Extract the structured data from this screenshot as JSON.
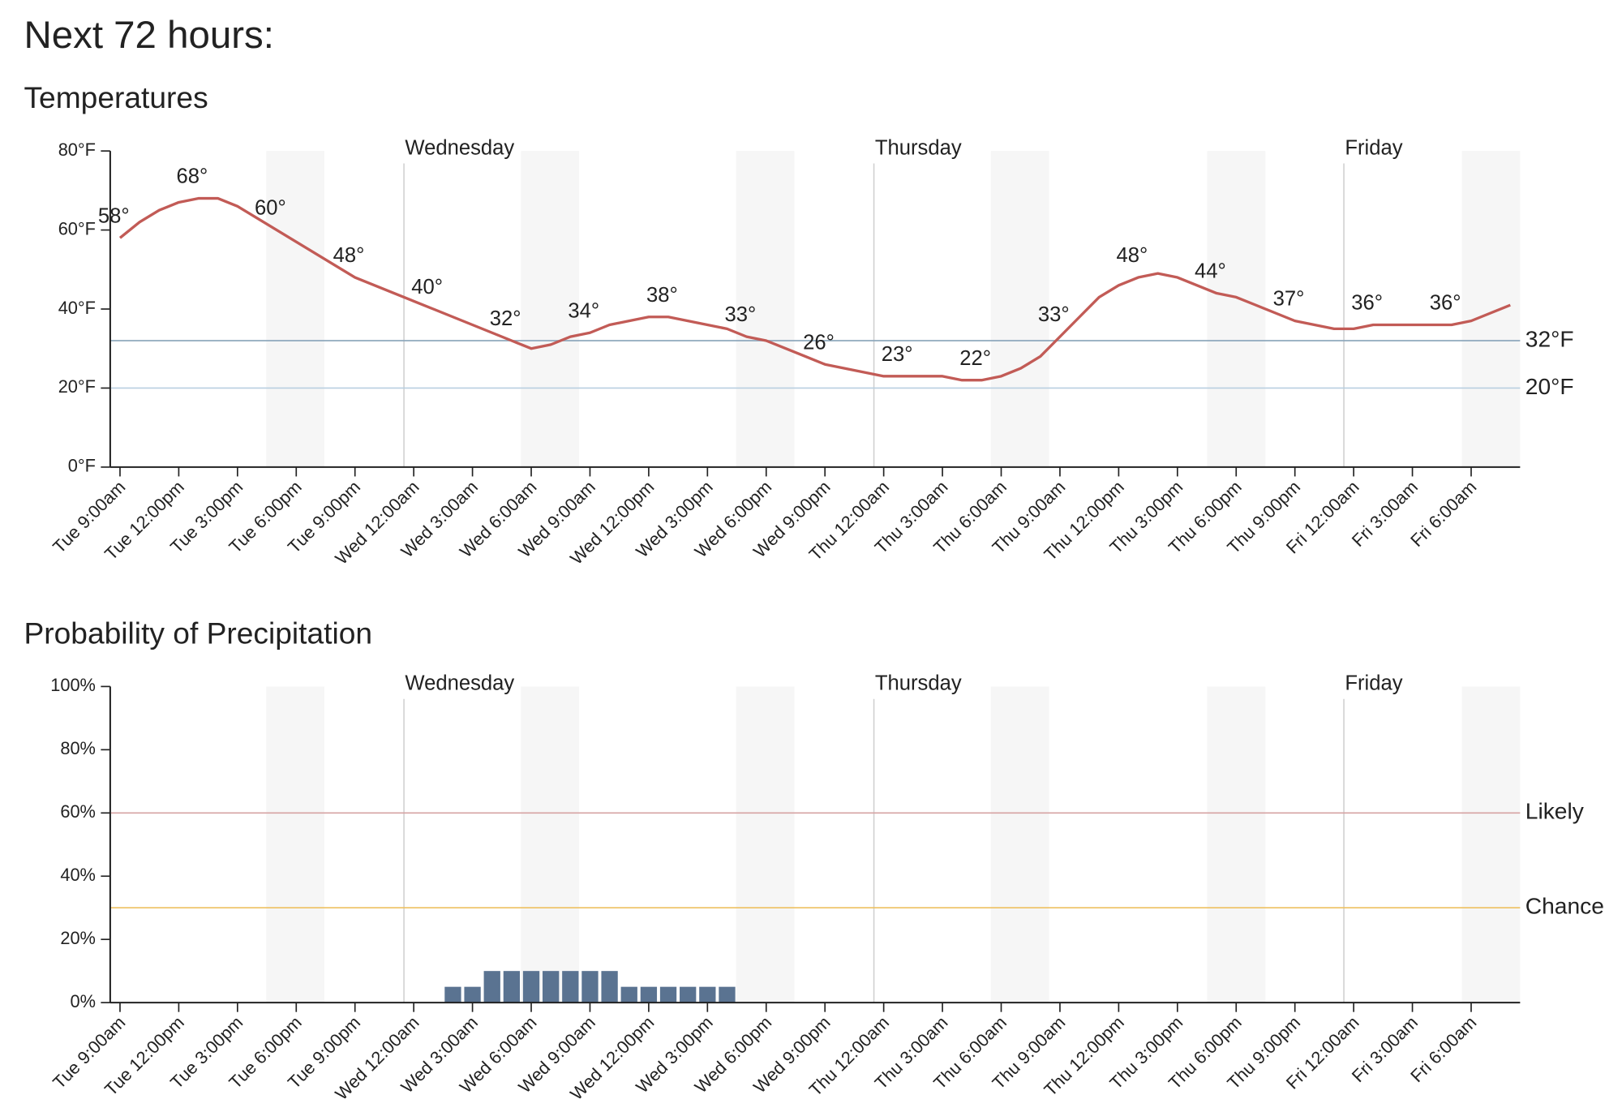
{
  "title": "Next 72 hours:",
  "chart_data": [
    {
      "type": "line",
      "title": "Temperatures",
      "color": "#c25b56",
      "categories": [
        "Tue 9:00am",
        null,
        null,
        "Tue 12:00pm",
        null,
        null,
        "Tue 3:00pm",
        null,
        null,
        "Tue 6:00pm",
        null,
        null,
        "Tue 9:00pm",
        null,
        null,
        "Wed 12:00am",
        null,
        null,
        "Wed 3:00am",
        null,
        null,
        "Wed 6:00am",
        null,
        null,
        "Wed 9:00am",
        null,
        null,
        "Wed 12:00pm",
        null,
        null,
        "Wed 3:00pm",
        null,
        null,
        "Wed 6:00pm",
        null,
        null,
        "Wed 9:00pm",
        null,
        null,
        "Thu 12:00am",
        null,
        null,
        "Thu 3:00am",
        null,
        null,
        "Thu 6:00am",
        null,
        null,
        "Thu 9:00am",
        null,
        null,
        "Thu 12:00pm",
        null,
        null,
        "Thu 3:00pm",
        null,
        null,
        "Thu 6:00pm",
        null,
        null,
        "Thu 9:00pm",
        null,
        null,
        "Fri 12:00am",
        null,
        null,
        "Fri 3:00am",
        null,
        null,
        "Fri 6:00am",
        null,
        null
      ],
      "values": [
        58,
        62,
        65,
        67,
        68,
        68,
        66,
        63,
        60,
        57,
        54,
        51,
        48,
        46,
        44,
        42,
        40,
        38,
        36,
        34,
        32,
        30,
        31,
        33,
        34,
        36,
        37,
        38,
        38,
        37,
        36,
        35,
        33,
        32,
        30,
        28,
        26,
        25,
        24,
        23,
        23,
        23,
        23,
        22,
        22,
        23,
        25,
        28,
        33,
        38,
        43,
        46,
        48,
        49,
        48,
        46,
        44,
        43,
        41,
        39,
        37,
        36,
        35,
        35,
        36,
        36,
        36,
        36,
        36,
        37,
        39,
        41
      ],
      "value_labels": [
        "58°",
        null,
        null,
        null,
        "68°",
        null,
        null,
        null,
        "60°",
        null,
        null,
        null,
        "48°",
        null,
        null,
        null,
        "40°",
        null,
        null,
        null,
        "32°",
        null,
        null,
        null,
        "34°",
        null,
        null,
        null,
        "38°",
        null,
        null,
        null,
        "33°",
        null,
        null,
        null,
        "26°",
        null,
        null,
        null,
        "23°",
        null,
        null,
        null,
        "22°",
        null,
        null,
        null,
        "33°",
        null,
        null,
        null,
        "48°",
        null,
        null,
        null,
        "44°",
        null,
        null,
        null,
        "37°",
        null,
        null,
        null,
        "36°",
        null,
        null,
        null,
        "36°",
        null,
        null,
        null
      ],
      "ylim": [
        0,
        80
      ],
      "yticks": [
        {
          "value": 0,
          "label": "0°F"
        },
        {
          "value": 20,
          "label": "20°F"
        },
        {
          "value": 40,
          "label": "40°F"
        },
        {
          "value": 60,
          "label": "60°F"
        },
        {
          "value": 80,
          "label": "80°F"
        }
      ],
      "reference_lines": [
        {
          "value": 32,
          "label": "32°F",
          "color": "#8fa9bd"
        },
        {
          "value": 20,
          "label": "20°F",
          "color": "#b9cfe0"
        }
      ],
      "day_markers": [
        {
          "category": "Wed 12:00am",
          "label": "Wednesday"
        },
        {
          "category": "Thu 12:00am",
          "label": "Thursday"
        },
        {
          "category": "Fri 12:00am",
          "label": "Friday"
        }
      ]
    },
    {
      "type": "bar",
      "title": "Probability of Precipitation",
      "color": "#5a7391",
      "categories": [
        "Tue 9:00am",
        null,
        null,
        "Tue 12:00pm",
        null,
        null,
        "Tue 3:00pm",
        null,
        null,
        "Tue 6:00pm",
        null,
        null,
        "Tue 9:00pm",
        null,
        null,
        "Wed 12:00am",
        null,
        null,
        "Wed 3:00am",
        null,
        null,
        "Wed 6:00am",
        null,
        null,
        "Wed 9:00am",
        null,
        null,
        "Wed 12:00pm",
        null,
        null,
        "Wed 3:00pm",
        null,
        null,
        "Wed 6:00pm",
        null,
        null,
        "Wed 9:00pm",
        null,
        null,
        "Thu 12:00am",
        null,
        null,
        "Thu 3:00am",
        null,
        null,
        "Thu 6:00am",
        null,
        null,
        "Thu 9:00am",
        null,
        null,
        "Thu 12:00pm",
        null,
        null,
        "Thu 3:00pm",
        null,
        null,
        "Thu 6:00pm",
        null,
        null,
        "Thu 9:00pm",
        null,
        null,
        "Fri 12:00am",
        null,
        null,
        "Fri 3:00am",
        null,
        null,
        "Fri 6:00am",
        null,
        null
      ],
      "values": [
        0,
        0,
        0,
        0,
        0,
        0,
        0,
        0,
        0,
        0,
        0,
        0,
        0,
        0,
        0,
        0,
        0,
        5,
        5,
        10,
        10,
        10,
        10,
        10,
        10,
        10,
        5,
        5,
        5,
        5,
        5,
        5,
        0,
        0,
        0,
        0,
        0,
        0,
        0,
        0,
        0,
        0,
        0,
        0,
        0,
        0,
        0,
        0,
        0,
        0,
        0,
        0,
        0,
        0,
        0,
        0,
        0,
        0,
        0,
        0,
        0,
        0,
        0,
        0,
        0,
        0,
        0,
        0,
        0,
        0,
        0,
        0
      ],
      "ylim": [
        0,
        100
      ],
      "yticks": [
        {
          "value": 0,
          "label": "0%"
        },
        {
          "value": 20,
          "label": "20%"
        },
        {
          "value": 40,
          "label": "40%"
        },
        {
          "value": 60,
          "label": "60%"
        },
        {
          "value": 80,
          "label": "80%"
        },
        {
          "value": 100,
          "label": "100%"
        }
      ],
      "reference_lines": [
        {
          "value": 60,
          "label": "Likely",
          "color": "#d6a3a3"
        },
        {
          "value": 30,
          "label": "Chance",
          "color": "#eec060"
        }
      ],
      "day_markers": [
        {
          "category": "Wed 12:00am",
          "label": "Wednesday"
        },
        {
          "category": "Thu 12:00am",
          "label": "Thursday"
        },
        {
          "category": "Fri 12:00am",
          "label": "Friday"
        }
      ]
    }
  ]
}
